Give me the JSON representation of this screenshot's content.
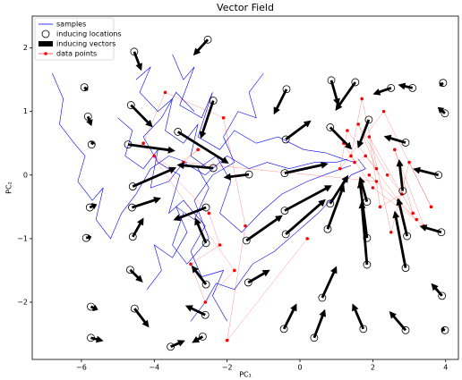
{
  "chart_data": {
    "type": "vector_field",
    "title": "Vector Field",
    "x_label": "PC₁",
    "y_label": "PC₂",
    "xlim": [
      -7.35,
      4.35
    ],
    "ylim": [
      -2.9,
      2.5
    ],
    "xticks": [
      {
        "value": -6,
        "label": "−6"
      },
      {
        "value": -4,
        "label": "−4"
      },
      {
        "value": -2,
        "label": "−2"
      },
      0,
      2,
      4
    ],
    "yticks": [
      {
        "value": -2,
        "label": "−2"
      },
      {
        "value": -1,
        "label": "−1"
      },
      0,
      1,
      2
    ],
    "legend": "upper left",
    "samples": {
      "name": "samples",
      "color": "#0000ff",
      "lines": [
        {
          "x": [
            -6.8,
            -6.5,
            -6.6,
            -6.2,
            -5.9,
            -6.1,
            -5.7,
            -5.4,
            -5.6,
            -5.2,
            -4.9,
            -4.5,
            -4.1,
            -3.6,
            -3.1
          ],
          "y": [
            1.6,
            1.2,
            0.8,
            0.5,
            0.3,
            -0.1,
            -0.4,
            -0.2,
            -0.7,
            -1.0,
            -0.6,
            -0.3,
            0.1,
            0.3,
            0.2
          ]
        },
        {
          "x": [
            -3.5,
            -3.2,
            -2.9,
            -3.3,
            -2.7,
            -2.4,
            -2.8,
            -2.2,
            -1.8,
            -1.2,
            -0.6,
            0.1,
            0.7,
            1.2,
            1.5
          ],
          "y": [
            1.9,
            1.5,
            1.7,
            1.1,
            0.9,
            1.3,
            0.6,
            0.4,
            0.7,
            0.5,
            0.6,
            0.4,
            0.35,
            0.25,
            0.2
          ]
        },
        {
          "x": [
            -4.2,
            -3.8,
            -4.0,
            -3.5,
            -3.1,
            -3.4,
            -2.9,
            -2.5,
            -2.8,
            -2.3,
            -1.9,
            -2.2,
            -1.6,
            -1.1,
            -0.5,
            0.2,
            0.9,
            1.4
          ],
          "y": [
            -1.8,
            -1.5,
            -1.1,
            -1.3,
            -0.9,
            -0.5,
            -0.7,
            -0.2,
            0.1,
            0.3,
            -0.1,
            -0.6,
            -0.9,
            -0.6,
            -0.3,
            -0.1,
            0.05,
            0.15
          ]
        },
        {
          "x": [
            -2.0,
            -2.4,
            -2.1,
            -2.7,
            -3.0,
            -2.6,
            -3.2,
            -3.6,
            -3.3,
            -3.9,
            -4.3,
            -3.8,
            -3.4,
            -2.9
          ],
          "y": [
            -2.3,
            -1.9,
            -1.5,
            -1.6,
            -1.2,
            -0.8,
            -0.4,
            -0.6,
            0.0,
            0.2,
            0.6,
            0.9,
            1.3,
            1.0
          ]
        },
        {
          "x": [
            -5.0,
            -4.6,
            -4.8,
            -4.3,
            -3.9,
            -4.1,
            -3.6,
            -3.2,
            -2.6,
            -2.0,
            -1.4,
            -0.9,
            -0.3,
            0.4,
            1.0,
            1.3
          ],
          "y": [
            0.9,
            0.7,
            0.3,
            0.1,
            0.4,
            -0.2,
            -0.1,
            0.2,
            0.0,
            0.3,
            0.1,
            0.2,
            0.1,
            0.2,
            0.2,
            0.25
          ]
        },
        {
          "x": [
            -1.0,
            -1.4,
            -1.2,
            -1.7,
            -2.1,
            -1.8,
            -2.4,
            -2.9,
            -2.5,
            -3.1,
            -3.5,
            -3.2
          ],
          "y": [
            1.6,
            1.3,
            0.9,
            1.0,
            0.6,
            0.2,
            0.0,
            -0.4,
            -1.0,
            -1.4,
            -1.1,
            -0.6
          ]
        },
        {
          "x": [
            -3.0,
            -2.6,
            -2.3,
            -1.8,
            -1.3,
            -0.7,
            -0.1,
            0.5,
            1.0,
            1.4,
            1.8,
            1.6
          ],
          "y": [
            -2.3,
            -2.0,
            -1.7,
            -1.8,
            -1.4,
            -1.2,
            -0.9,
            -0.6,
            -0.3,
            0.0,
            0.1,
            0.25
          ]
        },
        {
          "x": [
            -4.5,
            -4.1,
            -4.4,
            -3.9,
            -3.5,
            -3.7,
            -3.2,
            -2.8,
            -3.0,
            -2.5
          ],
          "y": [
            1.5,
            1.7,
            1.3,
            1.0,
            1.2,
            0.7,
            0.5,
            0.8,
            0.3,
            0.1
          ]
        }
      ]
    },
    "inducing_locations": {
      "name": "inducing locations",
      "color": "#000000",
      "x": [
        -4.55,
        -2.53,
        -5.92,
        -4.64,
        -2.38,
        -0.37,
        0.86,
        1.52,
        2.5,
        3.09,
        3.93,
        -5.82,
        -4.72,
        -3.35,
        -0.39,
        0.83,
        1.89,
        2.9,
        3.98,
        -5.72,
        -4.59,
        -2.38,
        -1.4,
        -0.42,
        -5.77,
        -4.61,
        -2.58,
        -0.42,
        0.83,
        1.84,
        2.82,
        3.8,
        -5.87,
        -4.59,
        -2.58,
        -1.47,
        -0.39,
        0.76,
        1.84,
        2.94,
        3.88,
        -4.66,
        -2.58,
        -1.42,
        0.61,
        1.84,
        2.9,
        3.9,
        -5.74,
        -4.54,
        -2.6,
        -0.44,
        0.39,
        1.74,
        2.9,
        3.98,
        -5.74,
        -3.55,
        -2.67
      ],
      "y": [
        1.94,
        2.13,
        1.38,
        1.1,
        1.17,
        1.35,
        1.49,
        1.46,
        1.37,
        1.37,
        1.45,
        0.92,
        0.48,
        0.68,
        0.56,
        0.75,
        0.87,
        0.51,
        0.97,
        0.48,
        -0.18,
        0.11,
        0.01,
        0.03,
        -0.51,
        -0.51,
        -0.51,
        -0.56,
        -0.45,
        -0.42,
        -0.25,
        0,
        -0.99,
        -0.97,
        -1.07,
        -1.03,
        -0.93,
        -0.85,
        -0.99,
        -0.96,
        -0.9,
        -1.49,
        -1.72,
        -1.69,
        -1.93,
        -1.41,
        -1.46,
        -1.9,
        -2.07,
        -2.1,
        -2.2,
        -2.42,
        -2.56,
        -2.42,
        -2.44,
        -2.44,
        -2.56,
        -2.7,
        -2.54
      ]
    },
    "inducing_vectors": {
      "name": "inducing vectors",
      "color": "#000000",
      "u": [
        0.2,
        -0.4,
        0.1,
        0.6,
        -0.35,
        -0.35,
        0.2,
        -0.55,
        -0.5,
        -0.4,
        -0.1,
        0.1,
        1.3,
        1.4,
        0.7,
        0.6,
        -0.3,
        -0.6,
        -0.2,
        0.05,
        1.2,
        -1.0,
        -0.7,
        1.2,
        0.2,
        0.8,
        -0.9,
        1.3,
        0.5,
        -0.2,
        -0.1,
        -0.7,
        0.15,
        0.3,
        -0.3,
        1.0,
        1.1,
        0.45,
        -0.2,
        -0.25,
        -0.6,
        0.35,
        -0.4,
        0.6,
        0.4,
        -0.15,
        -0.3,
        -0.3,
        0.2,
        0.4,
        -0.55,
        0.35,
        0.3,
        -0.3,
        -0.45,
        -0.1,
        0.35,
        0.4,
        -0.3
      ],
      "v": [
        -0.3,
        -0.25,
        -0.05,
        -0.35,
        -0.6,
        -0.4,
        -0.4,
        -0.45,
        -0.1,
        0.05,
        -0.05,
        -0.15,
        -0.1,
        -0.5,
        0.3,
        -0.35,
        -0.45,
        0.1,
        0.1,
        0.05,
        0.3,
        0.05,
        -0.05,
        0.15,
        0.05,
        0.15,
        -0.2,
        0.4,
        0.45,
        0.4,
        0.5,
        0.1,
        0.02,
        0.3,
        0.4,
        0.4,
        0.55,
        0.7,
        0.9,
        0.6,
        0.1,
        -0.2,
        0.3,
        0.2,
        0.5,
        1.0,
        0.9,
        0.2,
        -0.05,
        -0.3,
        0.15,
        0.4,
        0.45,
        0.4,
        0.3,
        0.02,
        -0.05,
        0.1,
        -0.1
      ]
    },
    "data_points": {
      "name": "data points",
      "color": "#ff0000",
      "x": [
        1.2,
        1.5,
        1.8,
        2.1,
        1.6,
        2.4,
        2.8,
        2.2,
        1.9,
        3.1,
        2.6,
        3.4,
        2.0,
        1.4,
        1.7,
        2.5,
        3.0,
        3.6,
        2.3,
        1.1,
        1.3,
        2.7,
        3.2,
        1.9,
        2.1,
        -3.2,
        -2.8,
        -3.5,
        -4.0,
        -2.5,
        -2.2,
        -3.0,
        -2.6,
        -1.8,
        -4.3,
        -3.7,
        -2.1,
        -1.5,
        -2.0,
        0.2
      ],
      "y": [
        0.5,
        0.2,
        0.3,
        0.1,
        0.8,
        0.0,
        -0.3,
        -0.5,
        0.6,
        -0.6,
        0.4,
        -0.8,
        -0.2,
        0.3,
        1.2,
        -0.9,
        0.2,
        -0.5,
        1.0,
        0.1,
        0.7,
        -0.4,
        -0.7,
        0.0,
        -0.1,
        0.2,
        0.4,
        0.1,
        0.3,
        -0.6,
        -1.1,
        -1.4,
        -2.0,
        -1.5,
        0.5,
        1.3,
        0.9,
        -0.8,
        -2.6,
        -1.0
      ]
    }
  }
}
